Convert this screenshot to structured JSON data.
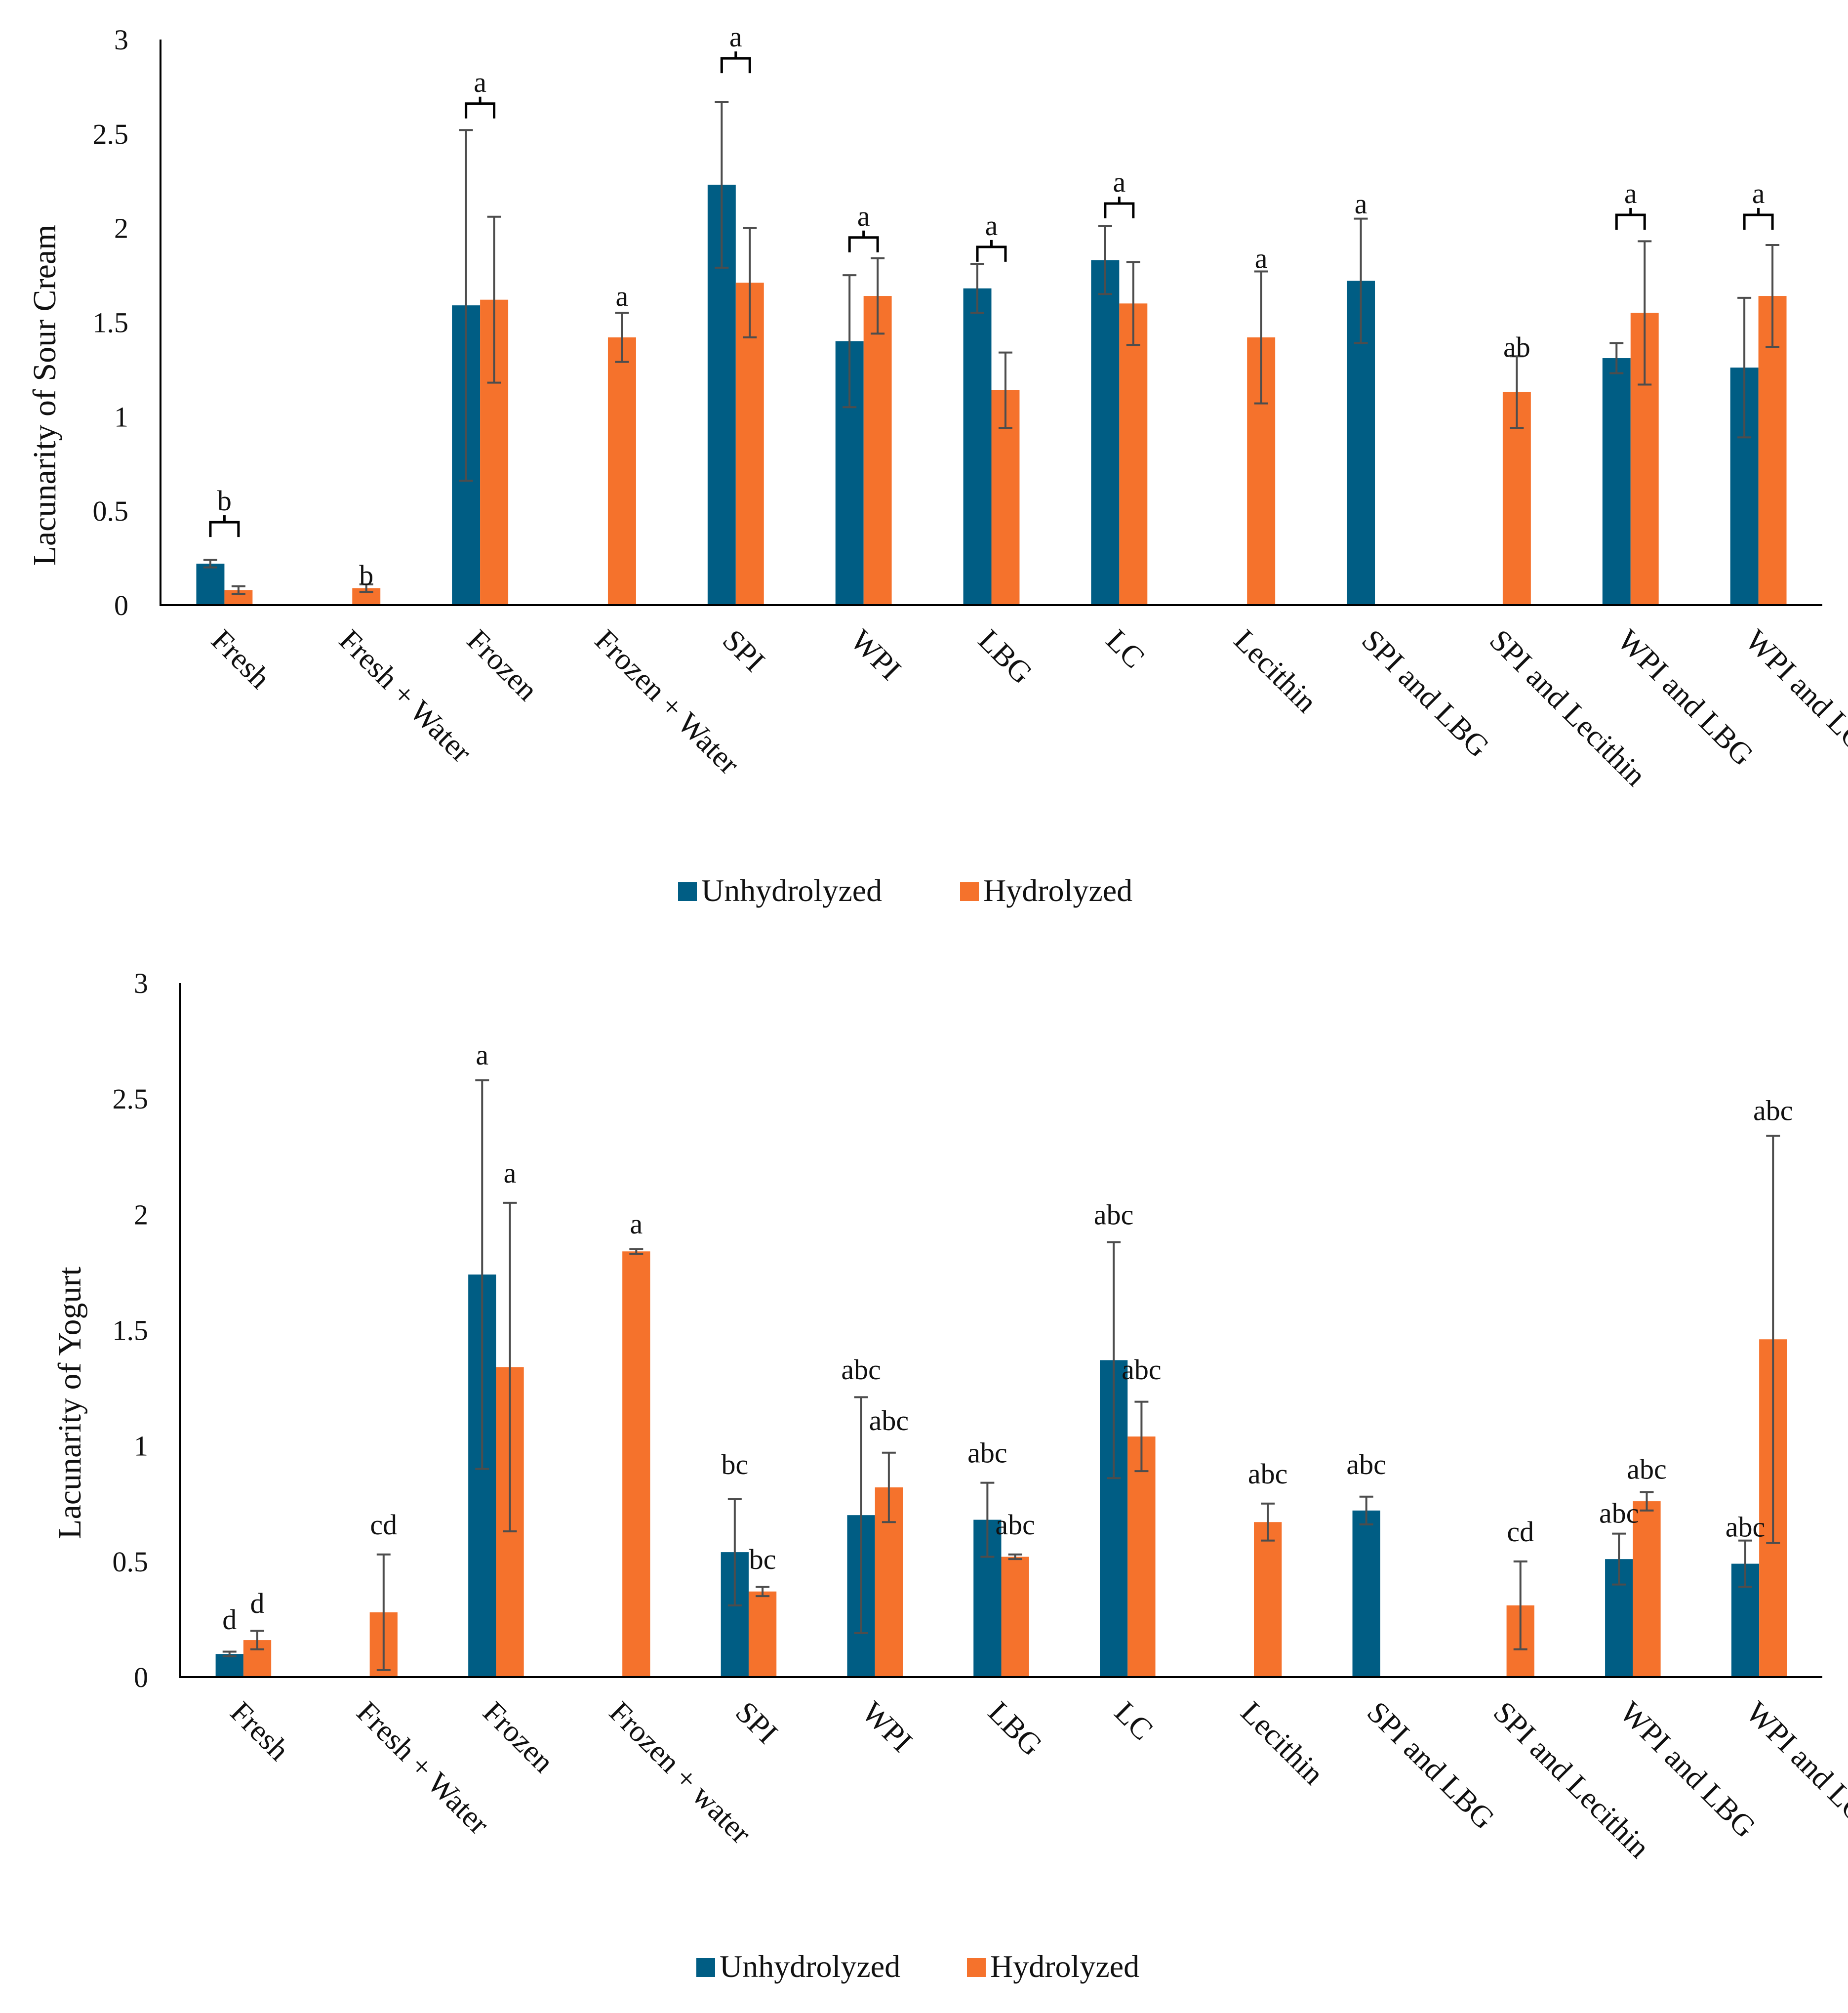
{
  "colors": {
    "unhydrolyzed": "#005d84",
    "hydrolyzed": "#f5722c",
    "axis": "#000000",
    "error": "#4d4d4d"
  },
  "chart_data": [
    {
      "type": "bar",
      "id": "sour-cream",
      "title": "",
      "xlabel": "",
      "ylabel": "Lacunarity of Sour Cream",
      "ylim": [
        0,
        3
      ],
      "yticks": [
        "0",
        "0.5",
        "1",
        "1.5",
        "2",
        "2.5",
        "3"
      ],
      "categories": [
        "Fresh",
        "Fresh + Water",
        "Frozen",
        "Frozen + Water",
        "SPI",
        "WPI",
        "LBG",
        "LC",
        "Lecithin",
        "SPI and LBG",
        "SPI and Lecithin",
        "WPI and LBG",
        "WPI and LC"
      ],
      "series": [
        {
          "name": "Unhydrolyzed",
          "values": [
            0.22,
            null,
            1.59,
            null,
            2.23,
            1.4,
            1.68,
            1.83,
            null,
            1.72,
            null,
            1.31,
            1.26
          ],
          "errors": [
            0.02,
            null,
            0.93,
            null,
            0.44,
            0.35,
            0.13,
            0.18,
            null,
            0.33,
            null,
            0.08,
            0.37
          ]
        },
        {
          "name": "Hydrolyzed",
          "values": [
            0.08,
            0.09,
            1.62,
            1.42,
            1.71,
            1.64,
            1.14,
            1.6,
            1.42,
            null,
            1.13,
            1.55,
            1.64
          ],
          "errors": [
            0.02,
            0.02,
            0.44,
            0.13,
            0.29,
            0.2,
            0.2,
            0.22,
            0.35,
            null,
            0.19,
            0.38,
            0.27
          ]
        }
      ],
      "significance": [
        {
          "text": "b",
          "category": 0,
          "y": 0.44,
          "bracket": true
        },
        {
          "text": "b",
          "category": 1,
          "y": 0.16,
          "bracket": false
        },
        {
          "text": "a",
          "category": 2,
          "y": 2.66,
          "bracket": true
        },
        {
          "text": "a",
          "category": 3,
          "y": 1.64,
          "bracket": false
        },
        {
          "text": "a",
          "category": 4,
          "y": 2.9,
          "bracket": true
        },
        {
          "text": "a",
          "category": 5,
          "y": 1.95,
          "bracket": true
        },
        {
          "text": "a",
          "category": 6,
          "y": 1.9,
          "bracket": true
        },
        {
          "text": "a",
          "category": 7,
          "y": 2.13,
          "bracket": true
        },
        {
          "text": "a",
          "category": 8,
          "y": 1.84,
          "bracket": false
        },
        {
          "text": "a",
          "category": 9,
          "y": 2.13,
          "bracket": false
        },
        {
          "text": "ab",
          "category": 10,
          "y": 1.37,
          "bracket": false
        },
        {
          "text": "a",
          "category": 11,
          "y": 2.07,
          "bracket": true
        },
        {
          "text": "a",
          "category": 12,
          "y": 2.07,
          "bracket": true
        }
      ],
      "legend": [
        "Unhydrolyzed",
        "Hydrolyzed"
      ],
      "legend_position": "bottom"
    },
    {
      "type": "bar",
      "id": "yogurt",
      "title": "",
      "xlabel": "",
      "ylabel": "Lacunarity of Yogurt",
      "ylim": [
        0,
        3
      ],
      "yticks": [
        "0",
        "0.5",
        "1",
        "1.5",
        "2",
        "2.5",
        "3"
      ],
      "categories": [
        "Fresh",
        "Fresh + Water",
        "Frozen",
        "Frozen + water",
        "SPI",
        "WPI",
        "LBG",
        "LC",
        "Lecithin",
        "SPI and LBG",
        "SPI and Lecithin",
        "WPI and LBG",
        "WPI and LC"
      ],
      "series": [
        {
          "name": "Unhydrolyzed",
          "values": [
            0.1,
            null,
            1.74,
            null,
            0.54,
            0.7,
            0.68,
            1.37,
            null,
            0.72,
            null,
            0.51,
            0.49
          ],
          "errors": [
            0.01,
            null,
            0.84,
            null,
            0.23,
            0.51,
            0.16,
            0.51,
            null,
            0.06,
            null,
            0.11,
            0.1
          ]
        },
        {
          "name": "Hydrolyzed",
          "values": [
            0.16,
            0.28,
            1.34,
            1.84,
            0.37,
            0.82,
            0.52,
            1.04,
            0.67,
            null,
            0.31,
            0.76,
            1.46
          ],
          "errors": [
            0.04,
            0.25,
            0.71,
            0.01,
            0.02,
            0.15,
            0.01,
            0.15,
            0.08,
            null,
            0.19,
            0.04,
            0.88
          ]
        }
      ],
      "labels": [
        {
          "text": "d",
          "category": 0,
          "series": 0,
          "y": 0.25
        },
        {
          "text": "d",
          "category": 0,
          "series": 1,
          "y": 0.32
        },
        {
          "text": "cd",
          "category": 1,
          "series": 1,
          "y": 0.66
        },
        {
          "text": "a",
          "category": 2,
          "series": 0,
          "y": 2.69
        },
        {
          "text": "a",
          "category": 2,
          "series": 1,
          "y": 2.18
        },
        {
          "text": "a",
          "category": 3,
          "series": 1,
          "y": 1.96
        },
        {
          "text": "bc",
          "category": 4,
          "series": 0,
          "y": 0.92
        },
        {
          "text": "bc",
          "category": 4,
          "series": 1,
          "y": 0.51
        },
        {
          "text": "abc",
          "category": 5,
          "series": 0,
          "y": 1.33
        },
        {
          "text": "abc",
          "category": 5,
          "series": 1,
          "y": 1.11
        },
        {
          "text": "abc",
          "category": 6,
          "series": 0,
          "y": 0.97
        },
        {
          "text": "abc",
          "category": 6,
          "series": 1,
          "y": 0.66
        },
        {
          "text": "abc",
          "category": 7,
          "series": 0,
          "y": 2.0
        },
        {
          "text": "abc",
          "category": 7,
          "series": 1,
          "y": 1.33
        },
        {
          "text": "abc",
          "category": 8,
          "series": 1,
          "y": 0.88
        },
        {
          "text": "abc",
          "category": 9,
          "series": 0,
          "y": 0.92
        },
        {
          "text": "cd",
          "category": 10,
          "series": 1,
          "y": 0.63
        },
        {
          "text": "abc",
          "category": 11,
          "series": 0,
          "y": 0.71
        },
        {
          "text": "abc",
          "category": 11,
          "series": 1,
          "y": 0.9
        },
        {
          "text": "abc",
          "category": 12,
          "series": 0,
          "y": 0.65
        },
        {
          "text": "abc",
          "category": 12,
          "series": 1,
          "y": 2.45
        }
      ],
      "legend": [
        "Unhydrolyzed",
        "Hydrolyzed"
      ],
      "legend_position": "bottom"
    }
  ]
}
